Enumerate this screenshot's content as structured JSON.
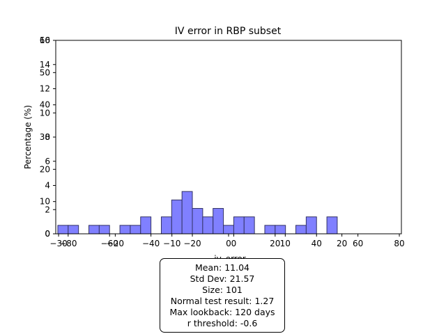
{
  "chart_data": {
    "type": "bar",
    "title": "IV error in RBP subset",
    "xlabel": "iv_error",
    "ylabel": "Percentage (%)",
    "bin_width": 5,
    "bin_starts": [
      -85,
      -80,
      -70,
      -65,
      -55,
      -50,
      -45,
      -35,
      -30,
      -25,
      -20,
      -15,
      -10,
      -5,
      0,
      5,
      15,
      20,
      30,
      35,
      45
    ],
    "values": [
      0.7,
      0.7,
      0.7,
      0.7,
      0.7,
      0.7,
      1.4,
      1.4,
      2.8,
      3.5,
      2.1,
      1.4,
      2.1,
      0.7,
      1.4,
      1.4,
      0.7,
      0.7,
      0.7,
      1.4,
      1.4
    ],
    "xlim": [
      -86,
      81
    ],
    "ylim": [
      0,
      16
    ],
    "bar_color": "#8080ff",
    "bar_edge": "#333366",
    "x_tick_sets": [
      {
        "labels": [
          "−80",
          "−60",
          "−40",
          "−20",
          "0",
          "20",
          "40",
          "60",
          "80"
        ],
        "values": [
          -80,
          -60,
          -40,
          -20,
          0,
          20,
          40,
          60,
          80
        ]
      },
      {
        "labels": [
          "−30",
          "−20",
          "−10",
          "0",
          "10",
          "20"
        ],
        "values": [
          -30,
          -20,
          -10,
          0,
          10,
          20
        ]
      }
    ],
    "y_tick_sets": [
      {
        "labels": [
          "0",
          "2",
          "4",
          "6",
          "8",
          "10",
          "12",
          "14",
          "16"
        ],
        "values": [
          0,
          2,
          4,
          6,
          8,
          10,
          12,
          14,
          16
        ]
      },
      {
        "labels": [
          "0",
          "10",
          "20",
          "30",
          "40",
          "50",
          "60"
        ],
        "values": [
          0,
          10,
          20,
          30,
          40,
          50,
          60
        ]
      }
    ]
  },
  "stats": {
    "mean": "Mean: 11.04",
    "std": "Std Dev: 21.57",
    "size": "Size: 101",
    "normal": "Normal test result: 1.27",
    "lookback": "Max lookback: 120 days",
    "threshold": "r threshold: -0.6"
  }
}
